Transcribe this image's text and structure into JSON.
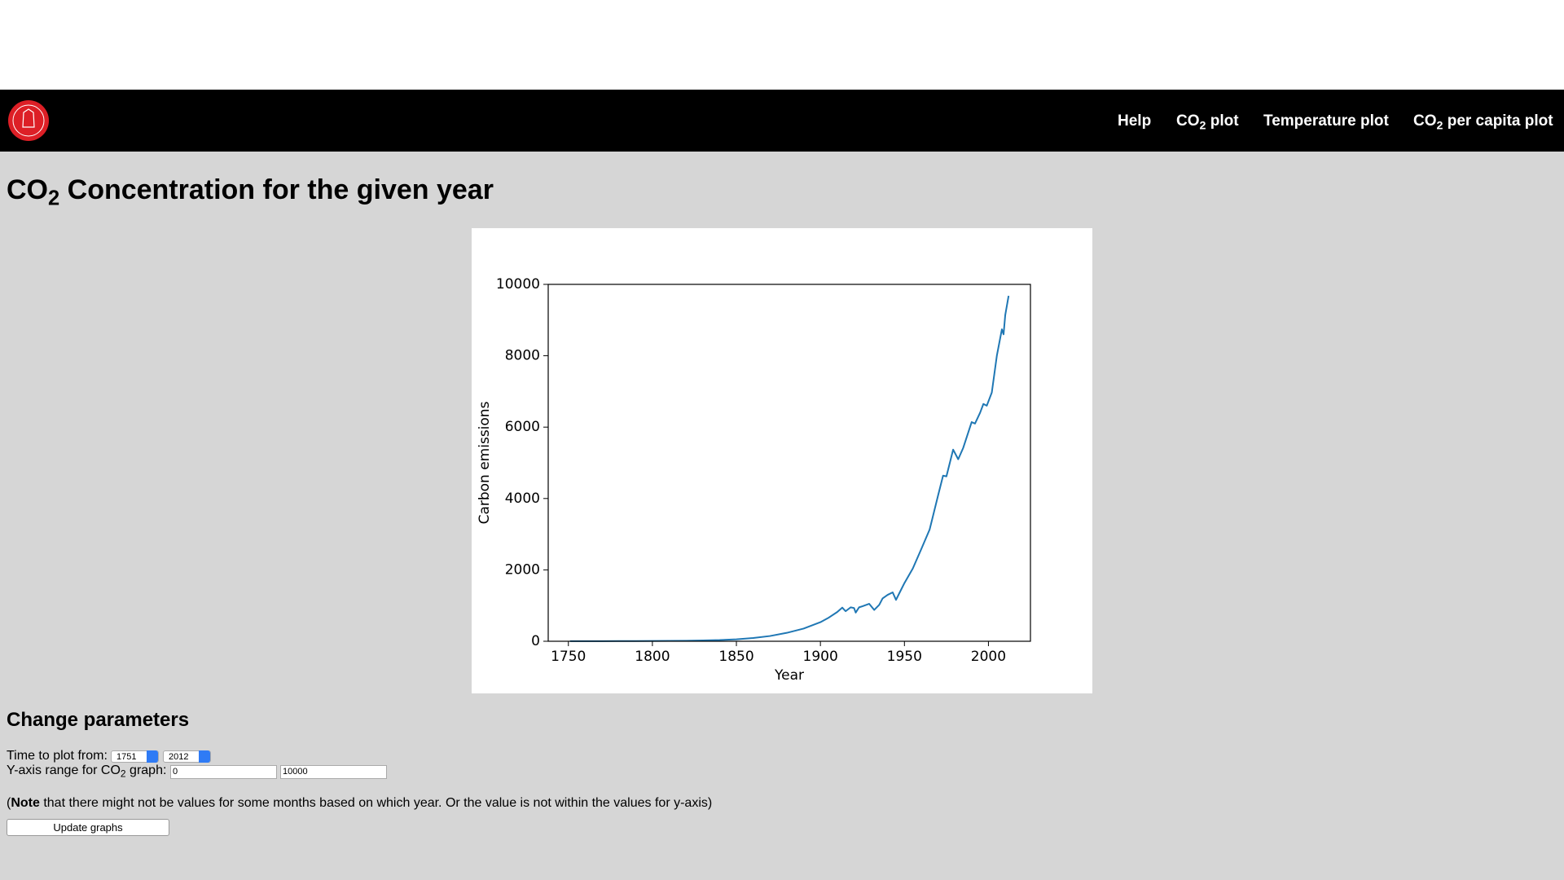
{
  "nav": {
    "items": [
      {
        "text": "Help"
      },
      {
        "text": "CO",
        "sub": "2",
        "rest": " plot"
      },
      {
        "text": "Temperature plot"
      },
      {
        "text": "CO",
        "sub": "2",
        "rest": " per capita plot"
      }
    ]
  },
  "heading": {
    "text": "CO",
    "sub": "2",
    "rest": " Concentration for the given year"
  },
  "chart_data": {
    "type": "line",
    "xlabel": "Year",
    "ylabel": "Carbon emissions",
    "x": [
      1751,
      1760,
      1770,
      1780,
      1790,
      1800,
      1810,
      1820,
      1830,
      1840,
      1850,
      1860,
      1870,
      1880,
      1890,
      1900,
      1905,
      1910,
      1913,
      1915,
      1918,
      1920,
      1921,
      1923,
      1925,
      1929,
      1932,
      1935,
      1937,
      1940,
      1943,
      1945,
      1947,
      1950,
      1955,
      1960,
      1965,
      1970,
      1973,
      1975,
      1979,
      1982,
      1985,
      1990,
      1992,
      1995,
      1997,
      1999,
      2002,
      2005,
      2008,
      2009,
      2010,
      2012
    ],
    "series": [
      {
        "color": "#1f77b4",
        "values": [
          3,
          3,
          4,
          5,
          7,
          8,
          10,
          14,
          24,
          33,
          54,
          91,
          147,
          236,
          356,
          534,
          663,
          819,
          943,
          842,
          950,
          932,
          803,
          950,
          980,
          1050,
          878,
          1020,
          1200,
          1300,
          1370,
          1160,
          1350,
          1630,
          2040,
          2580,
          3130,
          4080,
          4640,
          4620,
          5370,
          5100,
          5420,
          6140,
          6100,
          6400,
          6650,
          6600,
          6970,
          8000,
          8740,
          8600,
          9140,
          9680
        ]
      }
    ],
    "xlim": [
      1738,
      2025
    ],
    "ylim": [
      0,
      10000
    ],
    "xticks": [
      1750,
      1800,
      1850,
      1900,
      1950,
      2000
    ],
    "yticks": [
      0,
      2000,
      4000,
      6000,
      8000,
      10000
    ]
  },
  "form": {
    "title": "Change parameters",
    "time_label": "Time to plot from:",
    "from": "1751",
    "to": "2012",
    "yrange_label": {
      "text": "Y-axis range for CO",
      "sub": "2",
      "rest": " graph:"
    },
    "ymin": "0",
    "ymax": "10000",
    "note": {
      "open": "(",
      "bold": "Note",
      "rest": " that there might not be values for some months based on which year. Or the value is not within the values for y-axis)"
    },
    "button": "Update graphs"
  }
}
